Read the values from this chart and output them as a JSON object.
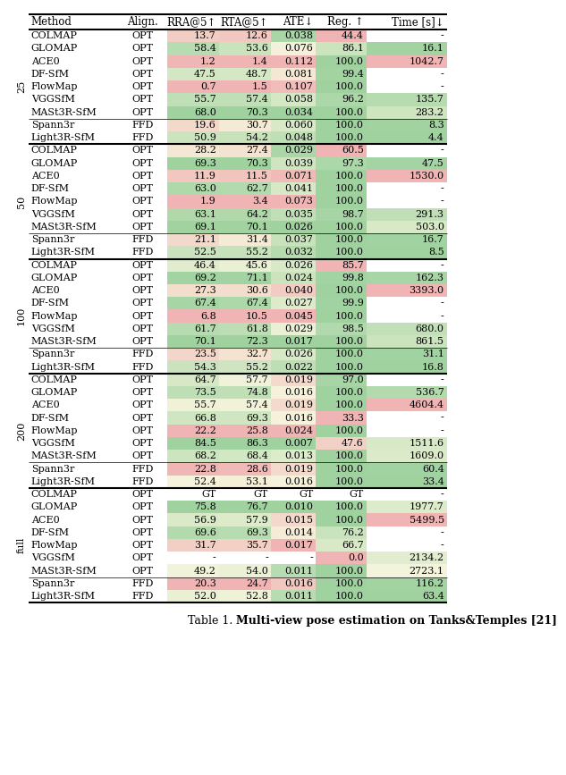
{
  "title_prefix": "Table 1. ",
  "title_bold": "Multi-view pose estimation on Tanks&Temples [21]",
  "columns": [
    "Method",
    "Align.",
    "RRA@5↑",
    "RTA@5↑",
    "ATE↓",
    "Reg. ↑",
    "Time [s]↓"
  ],
  "groups": [
    {
      "label": "25",
      "rows": [
        [
          "COLMAP",
          "OPT",
          "13.7",
          "12.6",
          "0.038",
          "44.4",
          "-"
        ],
        [
          "GLOMAP",
          "OPT",
          "58.4",
          "53.6",
          "0.076",
          "86.1",
          "16.1"
        ],
        [
          "ACE0",
          "OPT",
          "1.2",
          "1.4",
          "0.112",
          "100.0",
          "1042.7"
        ],
        [
          "DF-SfM",
          "OPT",
          "47.5",
          "48.7",
          "0.081",
          "99.4",
          "-"
        ],
        [
          "FlowMap",
          "OPT",
          "0.7",
          "1.5",
          "0.107",
          "100.0",
          "-"
        ],
        [
          "VGGSfM",
          "OPT",
          "55.7",
          "57.4",
          "0.058",
          "96.2",
          "135.7"
        ],
        [
          "MASt3R-SfM",
          "OPT",
          "68.0",
          "70.3",
          "0.034",
          "100.0",
          "283.2"
        ]
      ],
      "ffd_rows": [
        [
          "Spann3r",
          "FFD",
          "19.6",
          "30.7",
          "0.060",
          "100.0",
          "8.3"
        ],
        [
          "Light3R-SfM",
          "FFD",
          "50.9",
          "54.2",
          "0.048",
          "100.0",
          "4.4"
        ]
      ]
    },
    {
      "label": "50",
      "rows": [
        [
          "COLMAP",
          "OPT",
          "28.2",
          "27.4",
          "0.029",
          "60.5",
          "-"
        ],
        [
          "GLOMAP",
          "OPT",
          "69.3",
          "70.3",
          "0.039",
          "97.3",
          "47.5"
        ],
        [
          "ACE0",
          "OPT",
          "11.9",
          "11.5",
          "0.071",
          "100.0",
          "1530.0"
        ],
        [
          "DF-SfM",
          "OPT",
          "63.0",
          "62.7",
          "0.041",
          "100.0",
          "-"
        ],
        [
          "FlowMap",
          "OPT",
          "1.9",
          "3.4",
          "0.073",
          "100.0",
          "-"
        ],
        [
          "VGGSfM",
          "OPT",
          "63.1",
          "64.2",
          "0.035",
          "98.7",
          "291.3"
        ],
        [
          "MASt3R-SfM",
          "OPT",
          "69.1",
          "70.1",
          "0.026",
          "100.0",
          "503.0"
        ]
      ],
      "ffd_rows": [
        [
          "Spann3r",
          "FFD",
          "21.1",
          "31.4",
          "0.037",
          "100.0",
          "16.7"
        ],
        [
          "Light3R-SfM",
          "FFD",
          "52.5",
          "55.2",
          "0.032",
          "100.0",
          "8.5"
        ]
      ]
    },
    {
      "label": "100",
      "rows": [
        [
          "COLMAP",
          "OPT",
          "46.4",
          "45.6",
          "0.026",
          "85.7",
          "-"
        ],
        [
          "GLOMAP",
          "OPT",
          "69.2",
          "71.1",
          "0.024",
          "99.8",
          "162.3"
        ],
        [
          "ACE0",
          "OPT",
          "27.3",
          "30.6",
          "0.040",
          "100.0",
          "3393.0"
        ],
        [
          "DF-SfM",
          "OPT",
          "67.4",
          "67.4",
          "0.027",
          "99.9",
          "-"
        ],
        [
          "FlowMap",
          "OPT",
          "6.8",
          "10.5",
          "0.045",
          "100.0",
          "-"
        ],
        [
          "VGGSfM",
          "OPT",
          "61.7",
          "61.8",
          "0.029",
          "98.5",
          "680.0"
        ],
        [
          "MASt3R-SfM",
          "OPT",
          "70.1",
          "72.3",
          "0.017",
          "100.0",
          "861.5"
        ]
      ],
      "ffd_rows": [
        [
          "Spann3r",
          "FFD",
          "23.5",
          "32.7",
          "0.026",
          "100.0",
          "31.1"
        ],
        [
          "Light3R-SfM",
          "FFD",
          "54.3",
          "55.2",
          "0.022",
          "100.0",
          "16.8"
        ]
      ]
    },
    {
      "label": "200",
      "rows": [
        [
          "COLMAP",
          "OPT",
          "64.7",
          "57.7",
          "0.019",
          "97.0",
          "-"
        ],
        [
          "GLOMAP",
          "OPT",
          "73.5",
          "74.8",
          "0.016",
          "100.0",
          "536.7"
        ],
        [
          "ACE0",
          "OPT",
          "55.7",
          "57.4",
          "0.019",
          "100.0",
          "4604.4"
        ],
        [
          "DF-SfM",
          "OPT",
          "66.8",
          "69.3",
          "0.016",
          "33.3",
          "-"
        ],
        [
          "FlowMap",
          "OPT",
          "22.2",
          "25.8",
          "0.024",
          "100.0",
          "-"
        ],
        [
          "VGGSfM",
          "OPT",
          "84.5",
          "86.3",
          "0.007",
          "47.6",
          "1511.6"
        ],
        [
          "MASt3R-SfM",
          "OPT",
          "68.2",
          "68.4",
          "0.013",
          "100.0",
          "1609.0"
        ]
      ],
      "ffd_rows": [
        [
          "Spann3r",
          "FFD",
          "22.8",
          "28.6",
          "0.019",
          "100.0",
          "60.4"
        ],
        [
          "Light3R-SfM",
          "FFD",
          "52.4",
          "53.1",
          "0.016",
          "100.0",
          "33.4"
        ]
      ]
    },
    {
      "label": "full",
      "rows": [
        [
          "COLMAP",
          "OPT",
          "GT",
          "GT",
          "GT",
          "GT",
          "-"
        ],
        [
          "GLOMAP",
          "OPT",
          "75.8",
          "76.7",
          "0.010",
          "100.0",
          "1977.7"
        ],
        [
          "ACE0",
          "OPT",
          "56.9",
          "57.9",
          "0.015",
          "100.0",
          "5499.5"
        ],
        [
          "DF-SfM",
          "OPT",
          "69.6",
          "69.3",
          "0.014",
          "76.2",
          "-"
        ],
        [
          "FlowMap",
          "OPT",
          "31.7",
          "35.7",
          "0.017",
          "66.7",
          "-"
        ],
        [
          "VGGSfM",
          "OPT",
          "-",
          "-",
          "-",
          "0.0",
          "2134.2"
        ],
        [
          "MASt3R-SfM",
          "OPT",
          "49.2",
          "54.0",
          "0.011",
          "100.0",
          "2723.1"
        ]
      ],
      "ffd_rows": [
        [
          "Spann3r",
          "FFD",
          "20.3",
          "24.7",
          "0.016",
          "100.0",
          "116.2"
        ],
        [
          "Light3R-SfM",
          "FFD",
          "52.0",
          "52.8",
          "0.011",
          "100.0",
          "63.4"
        ]
      ]
    }
  ],
  "bg_color": "#ffffff",
  "font_size": 8.5,
  "small_font_size": 8.0,
  "caption_font_size": 9.0
}
